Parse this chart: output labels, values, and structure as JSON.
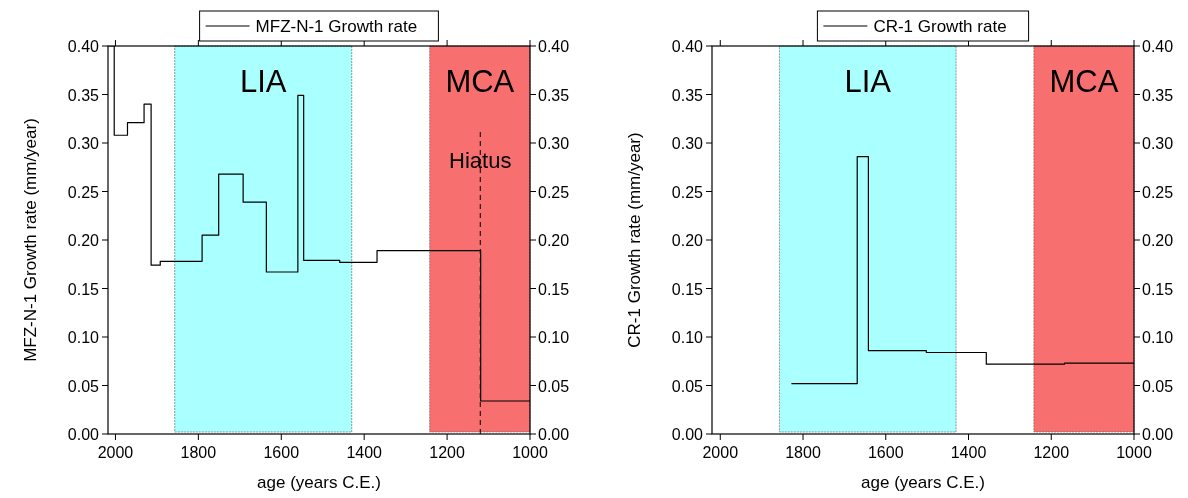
{
  "chart_data": [
    {
      "type": "step",
      "xlabel": "age (years C.E.)",
      "ylabel": "MFZ-N-1 Growth rate (mm/year)",
      "legend": "top",
      "grid": false,
      "series": [
        {
          "name": "MFZ-N-1 Growth rate",
          "color": "#000000",
          "x": [
            2016,
            2003,
            1971,
            1931,
            1914,
            1892,
            1791,
            1751,
            1692,
            1636,
            1560,
            1546,
            1459,
            1369,
            1119,
            1000
          ],
          "values": [
            0.4,
            0.308,
            0.321,
            0.34,
            0.174,
            0.178,
            0.205,
            0.268,
            0.239,
            0.167,
            0.349,
            0.179,
            0.177,
            0.189,
            0.034,
            0.034
          ]
        }
      ],
      "xlim": [
        2018,
        1000
      ],
      "xticks": [
        2000,
        1800,
        1600,
        1400,
        1200,
        1000
      ],
      "ylim": [
        0,
        0.4
      ],
      "yticks": [
        {
          "value": 0,
          "label": "0.00"
        },
        {
          "value": 0.05,
          "label": "0.05"
        },
        {
          "value": 0.1,
          "label": "0.10"
        },
        {
          "value": 0.15,
          "label": "0.15"
        },
        {
          "value": 0.2,
          "label": "0.20"
        },
        {
          "value": 0.25,
          "label": "0.25"
        },
        {
          "value": 0.3,
          "label": "0.30"
        },
        {
          "value": 0.35,
          "label": "0.35"
        },
        {
          "value": 0.4,
          "label": "0.40"
        }
      ],
      "y2lim": [
        0,
        0.4
      ],
      "y2ticks": [
        {
          "value": 0,
          "label": "0.00"
        },
        {
          "value": 0.05,
          "label": "0.05"
        },
        {
          "value": 0.1,
          "label": "0.10"
        },
        {
          "value": 0.15,
          "label": "0.15"
        },
        {
          "value": 0.2,
          "label": "0.20"
        },
        {
          "value": 0.25,
          "label": "0.25"
        },
        {
          "value": 0.3,
          "label": "0.30"
        },
        {
          "value": 0.35,
          "label": "0.35"
        },
        {
          "value": 0.4,
          "label": "0.40"
        }
      ],
      "bands": [
        {
          "axis": "x",
          "from": 1857,
          "to": 1430,
          "label": "LIA",
          "color": "#aaffff"
        },
        {
          "axis": "x",
          "from": 1242,
          "to": 1000,
          "label": "MCA",
          "color": "#f86f6f"
        }
      ],
      "ref_lines": [
        {
          "axis": "x",
          "value": 1120,
          "label": "Hiatus",
          "line_style": "dashed",
          "color": "#000000"
        }
      ]
    },
    {
      "type": "step",
      "xlabel": "age (years C.E.)",
      "ylabel": "CR-1 Growth rate (mm/year)",
      "legend": "top",
      "grid": false,
      "series": [
        {
          "name": "CR-1 Growth rate",
          "color": "#000000",
          "x": [
            1828,
            1669,
            1642,
            1502,
            1357,
            1168,
            1000
          ],
          "values": [
            0.052,
            0.286,
            0.086,
            0.084,
            0.072,
            0.073,
            0.073
          ]
        }
      ],
      "xlim": [
        2020,
        1000
      ],
      "xticks": [
        2000,
        1800,
        1600,
        1400,
        1200,
        1000
      ],
      "ylim": [
        0,
        0.4
      ],
      "yticks": [
        {
          "value": 0,
          "label": "0.00"
        },
        {
          "value": 0.05,
          "label": "0.05"
        },
        {
          "value": 0.1,
          "label": "0.10"
        },
        {
          "value": 0.15,
          "label": "0.15"
        },
        {
          "value": 0.2,
          "label": "0.20"
        },
        {
          "value": 0.25,
          "label": "0.25"
        },
        {
          "value": 0.3,
          "label": "0.30"
        },
        {
          "value": 0.35,
          "label": "0.35"
        },
        {
          "value": 0.4,
          "label": "0.40"
        }
      ],
      "y2lim": [
        0,
        0.4
      ],
      "y2ticks": [
        {
          "value": 0,
          "label": "0.00"
        },
        {
          "value": 0.05,
          "label": "0.05"
        },
        {
          "value": 0.1,
          "label": "0.10"
        },
        {
          "value": 0.15,
          "label": "0.15"
        },
        {
          "value": 0.2,
          "label": "0.20"
        },
        {
          "value": 0.25,
          "label": "0.25"
        },
        {
          "value": 0.3,
          "label": "0.30"
        },
        {
          "value": 0.35,
          "label": "0.35"
        },
        {
          "value": 0.4,
          "label": "0.40"
        }
      ],
      "bands": [
        {
          "axis": "x",
          "from": 1857,
          "to": 1430,
          "label": "LIA",
          "color": "#aaffff"
        },
        {
          "axis": "x",
          "from": 1242,
          "to": 1000,
          "label": "MCA",
          "color": "#f86f6f"
        }
      ]
    }
  ]
}
